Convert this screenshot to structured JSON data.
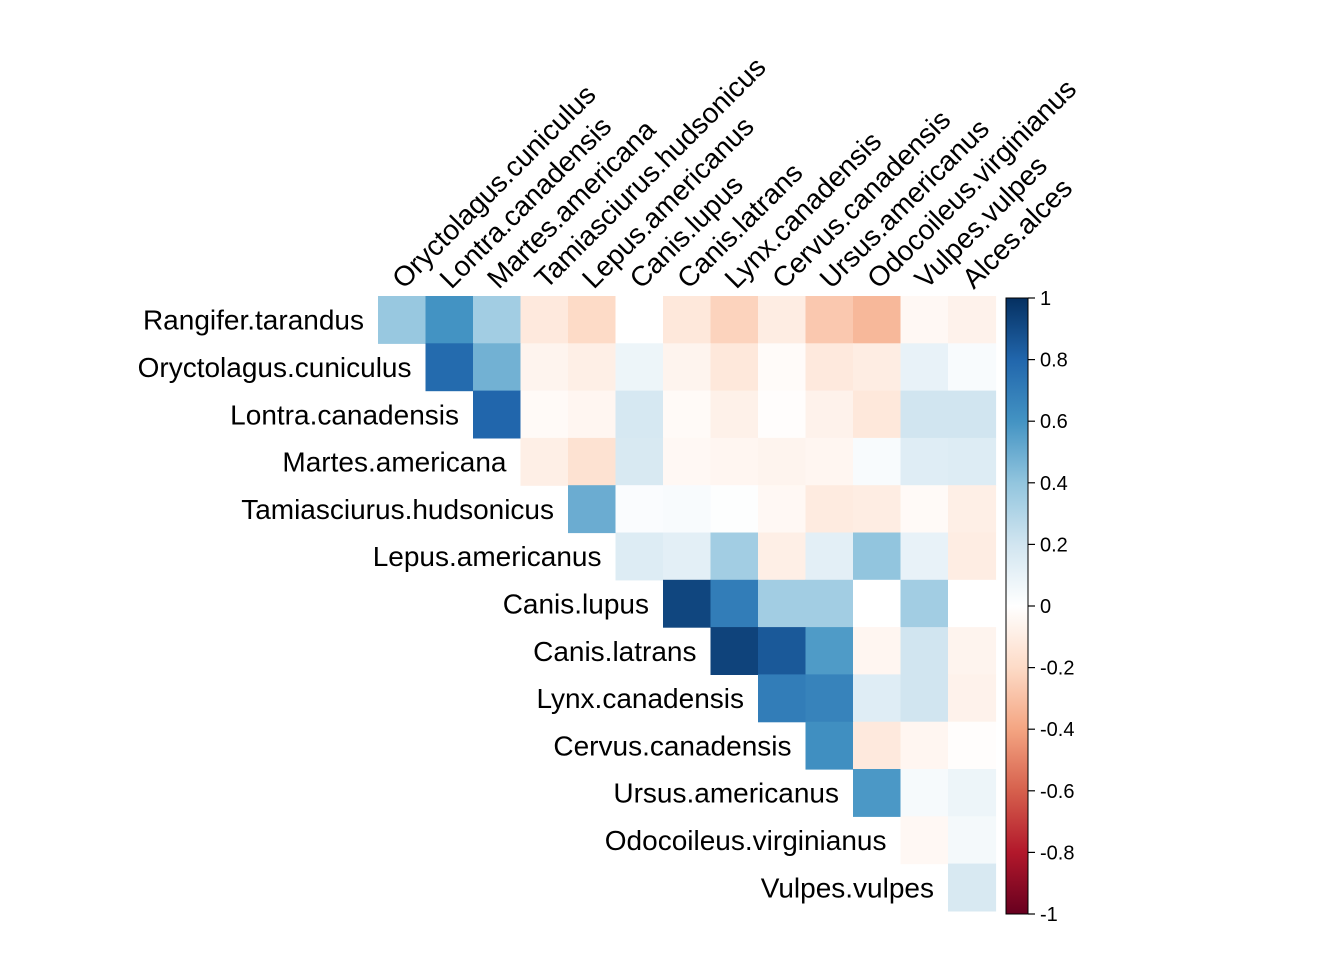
{
  "chart_data": {
    "type": "heatmap",
    "title": "",
    "layout": "upper-triangle-no-diagonal",
    "colormap": "RdBu",
    "colorbar": {
      "range": [
        -1,
        1
      ],
      "tick_labels": [
        "1",
        "0.8",
        "0.6",
        "0.4",
        "0.2",
        "0",
        "-0.2",
        "-0.4",
        "-0.6",
        "-0.8",
        "-1"
      ],
      "tick_values": [
        1,
        0.8,
        0.6,
        0.4,
        0.2,
        0,
        -0.2,
        -0.4,
        -0.6,
        -0.8,
        -1
      ]
    },
    "rows": [
      "Rangifer.tarandus",
      "Oryctolagus.cuniculus",
      "Lontra.canadensis",
      "Martes.americana",
      "Tamiasciurus.hudsonicus",
      "Lepus.americanus",
      "Canis.lupus",
      "Canis.latrans",
      "Lynx.canadensis",
      "Cervus.canadensis",
      "Ursus.americanus",
      "Odocoileus.virginianus",
      "Vulpes.vulpes"
    ],
    "columns": [
      "Oryctolagus.cuniculus",
      "Lontra.canadensis",
      "Martes.americana",
      "Tamiasciurus.hudsonicus",
      "Lepus.americanus",
      "Canis.lupus",
      "Canis.latrans",
      "Lynx.canadensis",
      "Cervus.canadensis",
      "Ursus.americanus",
      "Odocoileus.virginianus",
      "Vulpes.vulpes",
      "Alces.alces"
    ],
    "values": [
      [
        0.38,
        0.6,
        0.35,
        -0.12,
        -0.2,
        0.0,
        -0.13,
        -0.23,
        -0.1,
        -0.27,
        -0.33,
        -0.04,
        -0.07
      ],
      [
        null,
        0.78,
        0.48,
        -0.06,
        -0.09,
        0.08,
        -0.06,
        -0.13,
        -0.02,
        -0.12,
        -0.1,
        0.1,
        0.03
      ],
      [
        null,
        null,
        0.8,
        -0.03,
        -0.05,
        0.18,
        -0.03,
        -0.08,
        -0.01,
        -0.07,
        -0.13,
        0.2,
        0.2
      ],
      [
        null,
        null,
        null,
        -0.09,
        -0.16,
        0.17,
        -0.04,
        -0.05,
        -0.06,
        -0.05,
        0.03,
        0.14,
        0.15
      ],
      [
        null,
        null,
        null,
        null,
        0.5,
        0.02,
        0.03,
        0.01,
        -0.04,
        -0.11,
        -0.1,
        -0.03,
        -0.09
      ],
      [
        null,
        null,
        null,
        null,
        null,
        0.15,
        0.12,
        0.35,
        -0.09,
        0.12,
        0.4,
        0.1,
        -0.1
      ],
      [
        null,
        null,
        null,
        null,
        null,
        null,
        0.92,
        0.7,
        0.35,
        0.35,
        0.0,
        0.35,
        0.0
      ],
      [
        null,
        null,
        null,
        null,
        null,
        null,
        null,
        0.93,
        0.85,
        0.57,
        -0.05,
        0.2,
        -0.06
      ],
      [
        null,
        null,
        null,
        null,
        null,
        null,
        null,
        null,
        0.7,
        0.67,
        0.14,
        0.2,
        -0.07
      ],
      [
        null,
        null,
        null,
        null,
        null,
        null,
        null,
        null,
        null,
        0.62,
        -0.12,
        -0.05,
        -0.01
      ],
      [
        null,
        null,
        null,
        null,
        null,
        null,
        null,
        null,
        null,
        null,
        0.58,
        0.04,
        0.08
      ],
      [
        null,
        null,
        null,
        null,
        null,
        null,
        null,
        null,
        null,
        null,
        null,
        -0.04,
        0.05
      ],
      [
        null,
        null,
        null,
        null,
        null,
        null,
        null,
        null,
        null,
        null,
        null,
        null,
        0.17
      ]
    ]
  }
}
